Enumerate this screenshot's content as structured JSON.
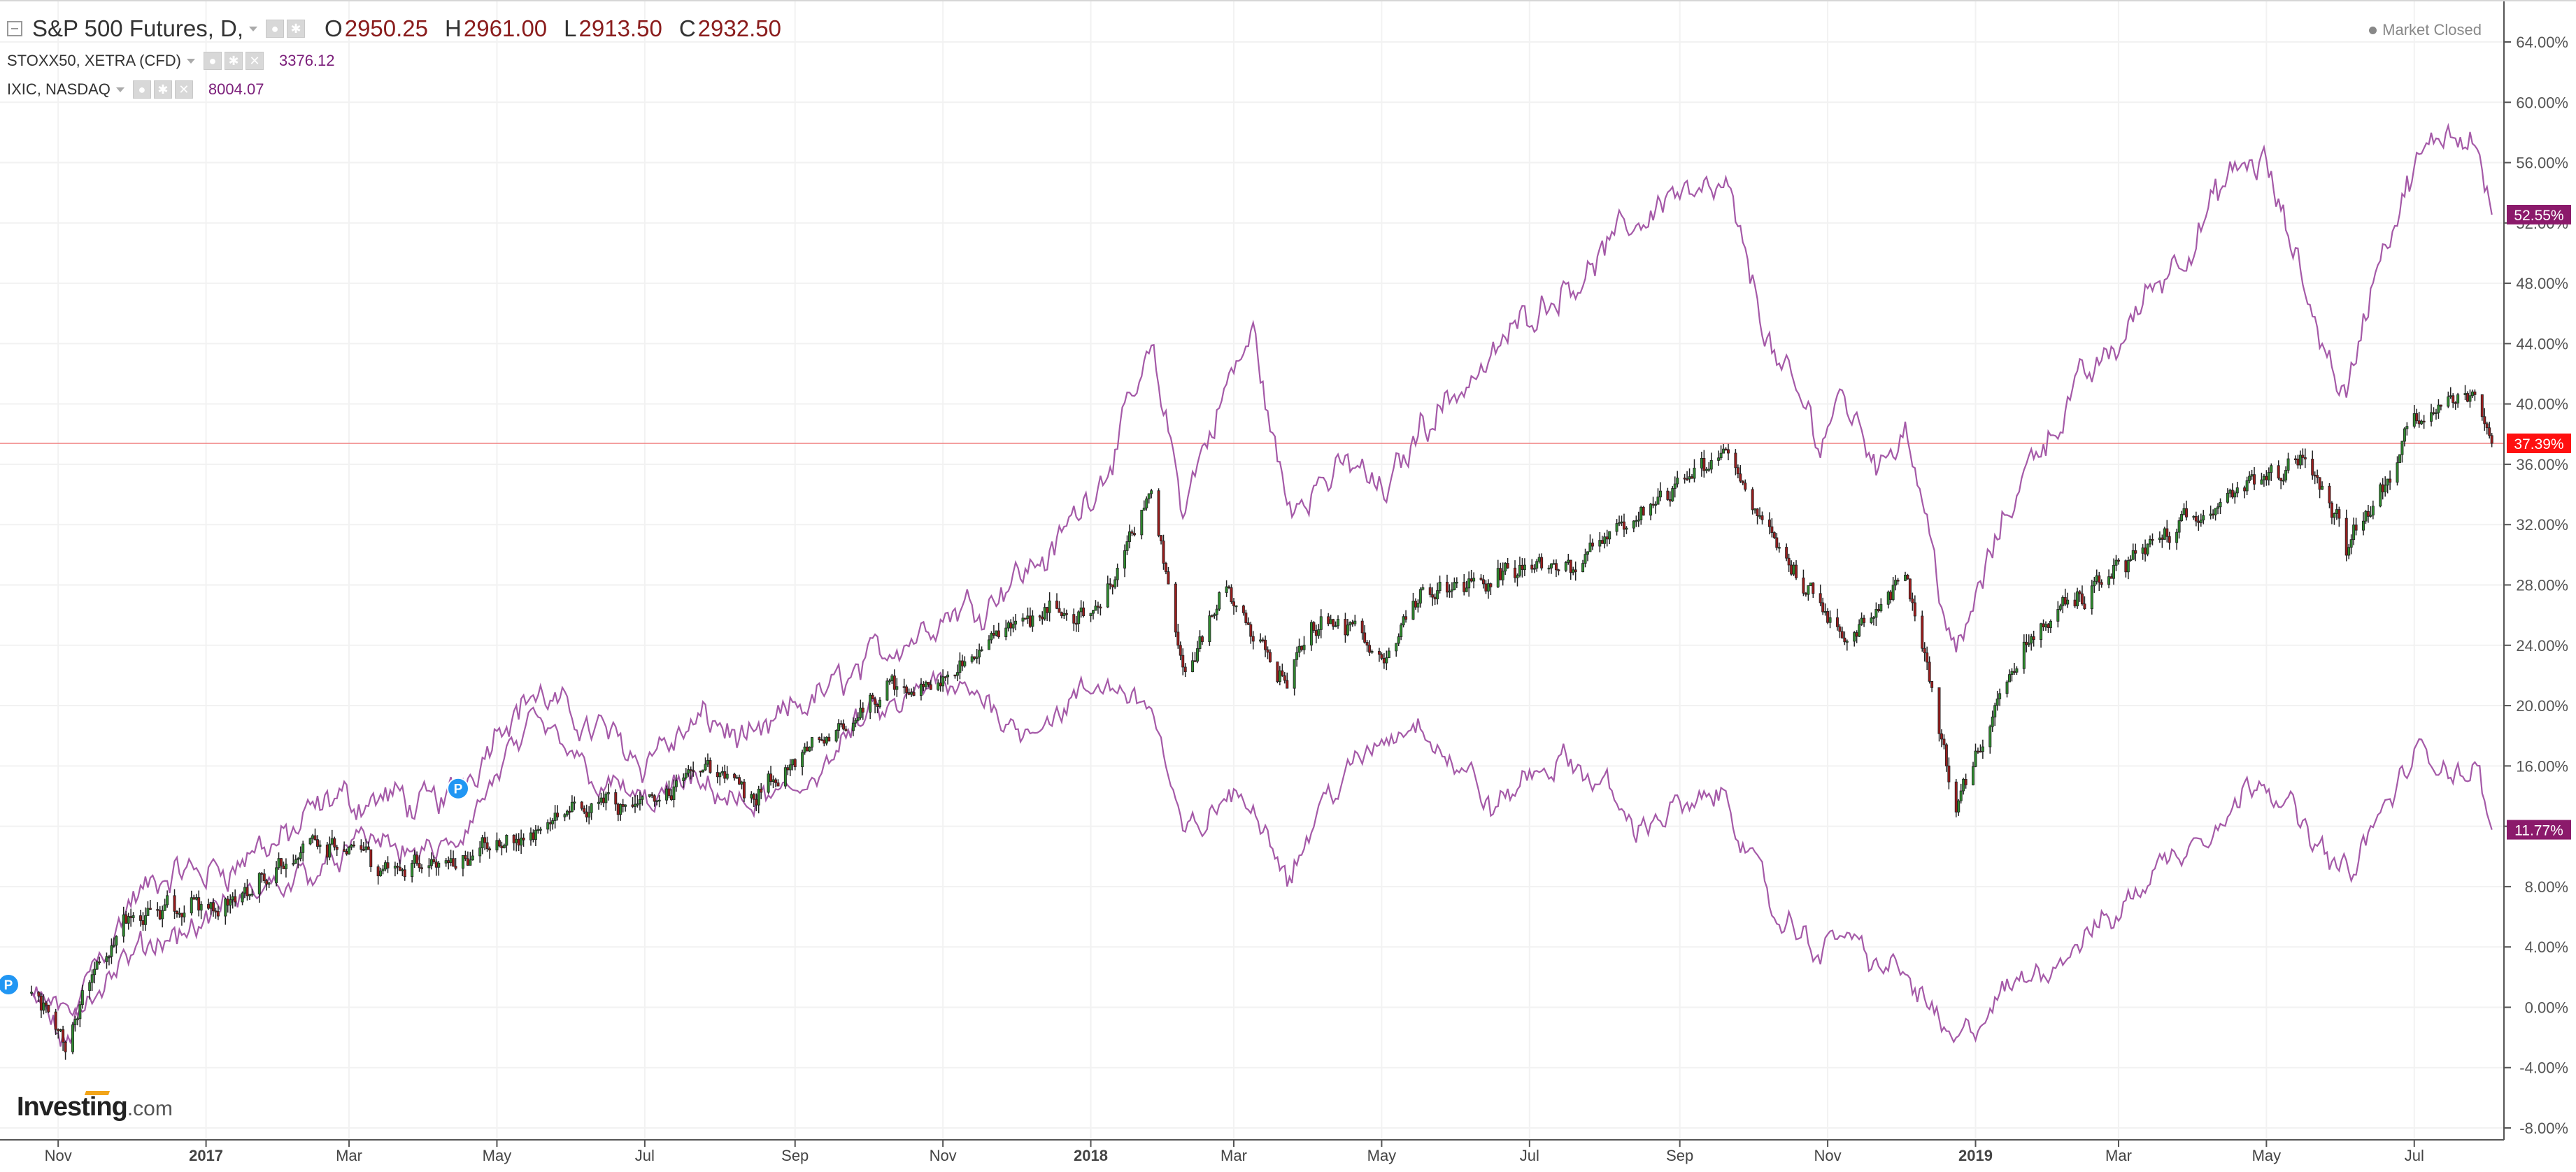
{
  "header": {
    "main_symbol": "S&P 500 Futures, D,",
    "ohlc": [
      {
        "label": "O",
        "value": "2950.25"
      },
      {
        "label": "H",
        "value": "2961.00"
      },
      {
        "label": "L",
        "value": "2913.50"
      },
      {
        "label": "C",
        "value": "2932.50"
      }
    ],
    "compare": [
      {
        "symbol": "STOXX50, XETRA (CFD)",
        "value": "3376.12"
      },
      {
        "symbol": "IXIC, NASDAQ",
        "value": "8004.07"
      }
    ],
    "market_status": "Market Closed"
  },
  "branding": {
    "name": "Investing",
    "domain": ".com"
  },
  "colors": {
    "up_candle": "#2e8b2e",
    "down_candle": "#9b1c1c",
    "compare_line": "#a55aa8",
    "current_line": "#f08080",
    "badge_main": "#ff1010",
    "badge_compare": "#8b1a6b",
    "marker": "#2196f3"
  },
  "chart_data": {
    "type": "line",
    "title": "",
    "x_tick_labels": [
      "Nov",
      "2017",
      "Mar",
      "May",
      "Jul",
      "Sep",
      "Nov",
      "2018",
      "Mar",
      "May",
      "Jul",
      "Sep",
      "Nov",
      "2019",
      "Mar",
      "May",
      "Jul"
    ],
    "y_tick_labels": [
      "64.00%",
      "60.00%",
      "56.00%",
      "52.00%",
      "48.00%",
      "44.00%",
      "40.00%",
      "36.00%",
      "32.00%",
      "28.00%",
      "24.00%",
      "20.00%",
      "16.00%",
      "12.00%",
      "8.00%",
      "4.00%",
      "0.00%",
      "-4.00%",
      "-8.00%"
    ],
    "ylim": [
      -8,
      64
    ],
    "y_unit": "%",
    "grid": true,
    "series": [
      {
        "name": "S&P 500 Futures, D,",
        "style": "candlestick",
        "last_badge": "37.39%",
        "x": [
          "2016-10-21",
          "2016-11-04",
          "2016-11-15",
          "2016-11-30",
          "2016-12-15",
          "2017-01-03",
          "2017-01-25",
          "2017-02-15",
          "2017-03-01",
          "2017-03-15",
          "2017-04-01",
          "2017-04-15",
          "2017-05-01",
          "2017-05-15",
          "2017-06-01",
          "2017-06-15",
          "2017-07-01",
          "2017-07-15",
          "2017-08-01",
          "2017-08-15",
          "2017-09-01",
          "2017-09-15",
          "2017-10-01",
          "2017-10-15",
          "2017-11-01",
          "2017-11-15",
          "2017-12-01",
          "2017-12-15",
          "2018-01-02",
          "2018-01-15",
          "2018-01-26",
          "2018-02-08",
          "2018-02-26",
          "2018-03-09",
          "2018-03-23",
          "2018-04-06",
          "2018-04-20",
          "2018-05-03",
          "2018-05-18",
          "2018-06-01",
          "2018-06-15",
          "2018-07-02",
          "2018-07-15",
          "2018-08-01",
          "2018-08-15",
          "2018-08-29",
          "2018-09-20",
          "2018-10-10",
          "2018-10-29",
          "2018-11-07",
          "2018-11-23",
          "2018-12-03",
          "2018-12-14",
          "2018-12-24",
          "2019-01-10",
          "2019-01-25",
          "2019-02-15",
          "2019-03-01",
          "2019-03-15",
          "2019-04-01",
          "2019-04-15",
          "2019-04-30",
          "2019-05-15",
          "2019-06-03",
          "2019-06-15",
          "2019-07-01",
          "2019-07-15",
          "2019-07-26",
          "2019-08-02"
        ],
        "values": [
          1.0,
          -2.0,
          3.0,
          6.0,
          6.5,
          6.5,
          8.5,
          11.5,
          11.0,
          9.0,
          10.0,
          9.5,
          11.0,
          11.5,
          13.0,
          13.5,
          13.0,
          15.0,
          16.0,
          14.0,
          16.5,
          17.5,
          20.0,
          21.0,
          22.0,
          23.5,
          25.0,
          26.0,
          26.0,
          30.5,
          34.5,
          22.0,
          28.0,
          24.5,
          22.0,
          26.0,
          24.5,
          23.5,
          27.5,
          28.0,
          27.5,
          30.0,
          29.0,
          31.0,
          32.5,
          34.5,
          37.0,
          31.0,
          27.0,
          25.0,
          26.5,
          28.5,
          21.0,
          13.0,
          21.0,
          24.5,
          27.0,
          29.0,
          30.5,
          32.0,
          34.0,
          35.0,
          37.0,
          31.0,
          34.0,
          38.5,
          40.5,
          41.0,
          37.39
        ],
        "candle_count": 700
      },
      {
        "name": "IXIC, NASDAQ",
        "style": "line",
        "last_badge": "52.55%",
        "x": [
          "2016-10-21",
          "2016-11-04",
          "2016-11-15",
          "2016-11-30",
          "2016-12-15",
          "2017-01-03",
          "2017-01-25",
          "2017-02-15",
          "2017-03-01",
          "2017-03-15",
          "2017-04-01",
          "2017-04-15",
          "2017-05-01",
          "2017-05-15",
          "2017-06-01",
          "2017-06-15",
          "2017-07-01",
          "2017-07-15",
          "2017-08-01",
          "2017-08-15",
          "2017-09-01",
          "2017-09-15",
          "2017-10-01",
          "2017-10-15",
          "2017-11-01",
          "2017-11-15",
          "2017-12-01",
          "2017-12-15",
          "2018-01-02",
          "2018-01-15",
          "2018-01-26",
          "2018-02-08",
          "2018-02-26",
          "2018-03-09",
          "2018-03-23",
          "2018-04-06",
          "2018-04-20",
          "2018-05-03",
          "2018-05-18",
          "2018-06-01",
          "2018-06-15",
          "2018-07-02",
          "2018-07-15",
          "2018-08-01",
          "2018-08-15",
          "2018-08-29",
          "2018-09-20",
          "2018-10-10",
          "2018-10-29",
          "2018-11-07",
          "2018-11-23",
          "2018-12-03",
          "2018-12-14",
          "2018-12-24",
          "2019-01-10",
          "2019-01-25",
          "2019-02-15",
          "2019-03-01",
          "2019-03-15",
          "2019-04-01",
          "2019-04-15",
          "2019-04-30",
          "2019-05-15",
          "2019-06-03",
          "2019-06-15",
          "2019-07-01",
          "2019-07-15",
          "2019-07-26",
          "2019-08-02"
        ],
        "values": [
          1.0,
          -3.0,
          3.0,
          7.0,
          8.0,
          9.0,
          10.5,
          12.5,
          13.5,
          14.0,
          13.0,
          14.5,
          19.0,
          21.0,
          19.0,
          18.5,
          17.0,
          18.0,
          19.0,
          17.0,
          19.5,
          21.0,
          23.0,
          24.5,
          26.0,
          27.0,
          29.0,
          30.0,
          34.5,
          38.5,
          43.5,
          33.0,
          41.0,
          44.5,
          33.0,
          35.0,
          36.0,
          34.0,
          39.0,
          41.0,
          43.0,
          46.5,
          48.0,
          50.0,
          52.0,
          54.5,
          54.0,
          43.0,
          37.5,
          41.0,
          36.0,
          39.0,
          31.0,
          23.0,
          31.0,
          37.0,
          41.5,
          44.0,
          48.0,
          51.0,
          54.5,
          56.0,
          48.0,
          40.5,
          49.0,
          55.0,
          58.0,
          59.0,
          52.55
        ]
      },
      {
        "name": "STOXX50, XETRA (CFD)",
        "style": "line",
        "last_badge": "11.77%",
        "x": [
          "2016-10-21",
          "2016-11-04",
          "2016-11-15",
          "2016-11-30",
          "2016-12-15",
          "2017-01-03",
          "2017-01-25",
          "2017-02-15",
          "2017-03-01",
          "2017-03-15",
          "2017-04-01",
          "2017-04-15",
          "2017-05-01",
          "2017-05-15",
          "2017-06-01",
          "2017-06-15",
          "2017-07-01",
          "2017-07-15",
          "2017-08-01",
          "2017-08-15",
          "2017-09-01",
          "2017-09-15",
          "2017-10-01",
          "2017-10-15",
          "2017-11-01",
          "2017-11-15",
          "2017-12-01",
          "2017-12-15",
          "2018-01-02",
          "2018-01-15",
          "2018-01-26",
          "2018-02-08",
          "2018-02-26",
          "2018-03-09",
          "2018-03-23",
          "2018-04-06",
          "2018-04-20",
          "2018-05-03",
          "2018-05-18",
          "2018-06-01",
          "2018-06-15",
          "2018-07-02",
          "2018-07-15",
          "2018-08-01",
          "2018-08-15",
          "2018-08-29",
          "2018-09-20",
          "2018-10-10",
          "2018-10-29",
          "2018-11-07",
          "2018-11-23",
          "2018-12-03",
          "2018-12-14",
          "2018-12-24",
          "2019-01-10",
          "2019-01-25",
          "2019-02-15",
          "2019-03-01",
          "2019-03-15",
          "2019-04-01",
          "2019-04-15",
          "2019-04-30",
          "2019-05-15",
          "2019-06-03",
          "2019-06-15",
          "2019-07-01",
          "2019-07-15",
          "2019-07-26",
          "2019-08-02"
        ],
        "values": [
          1.0,
          -1.0,
          1.0,
          2.5,
          4.5,
          6.0,
          7.5,
          9.5,
          10.5,
          11.0,
          10.0,
          10.5,
          15.0,
          18.5,
          17.0,
          15.0,
          13.5,
          14.5,
          14.0,
          13.0,
          14.5,
          16.5,
          19.0,
          20.0,
          21.0,
          20.5,
          19.0,
          19.5,
          20.5,
          21.0,
          20.5,
          11.0,
          14.0,
          13.0,
          9.0,
          13.5,
          16.0,
          17.5,
          19.0,
          16.0,
          13.0,
          15.5,
          16.0,
          14.5,
          12.0,
          13.0,
          14.0,
          6.0,
          3.5,
          5.0,
          3.0,
          2.0,
          0.0,
          -2.5,
          0.0,
          2.0,
          4.5,
          6.5,
          9.0,
          11.0,
          13.0,
          16.0,
          12.0,
          9.0,
          12.0,
          16.5,
          16.0,
          15.5,
          11.77
        ]
      }
    ],
    "markers": [
      {
        "label": "P",
        "x": "2016-10-21"
      },
      {
        "label": "P",
        "x": "2017-04-15"
      }
    ]
  }
}
